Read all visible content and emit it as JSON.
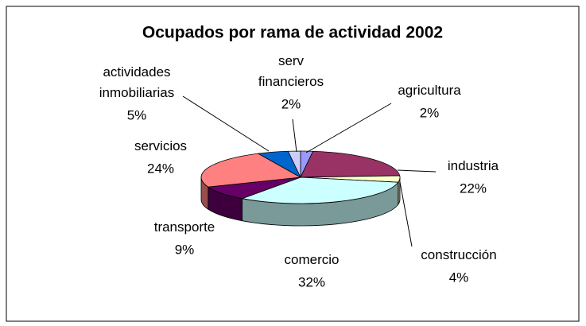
{
  "chart_data": {
    "type": "pie3d",
    "title": "Ocupados por rama de actividad 2002",
    "categories": [
      "agricultura",
      "industria",
      "construcción",
      "comercio",
      "transporte",
      "servicios",
      "actividades inmobiliarias",
      "serv financieros"
    ],
    "values": [
      2,
      22,
      4,
      32,
      9,
      24,
      5,
      2
    ],
    "value_labels": [
      "2%",
      "22%",
      "4%",
      "32%",
      "9%",
      "24%",
      "5%",
      "2%"
    ],
    "colors": [
      "#9999ff",
      "#993366",
      "#ffffcc",
      "#ccffff",
      "#660066",
      "#ff8080",
      "#0066cc",
      "#ccccff"
    ]
  }
}
